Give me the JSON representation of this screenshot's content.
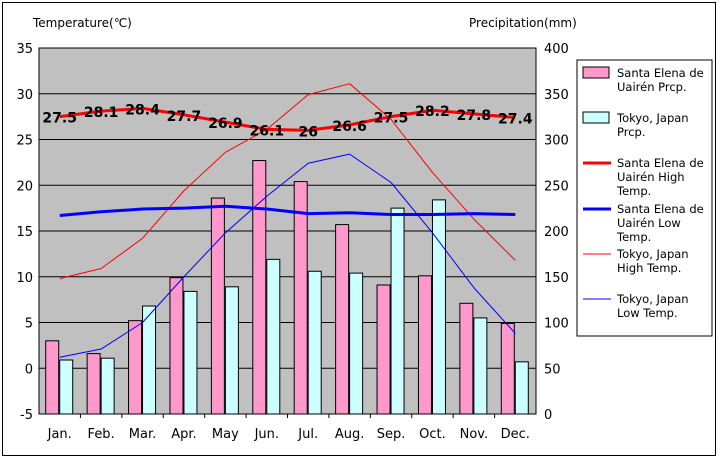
{
  "chart_data": {
    "type": "bar",
    "left_axis_label": "Temperature(℃)",
    "right_axis_label": "Precipitation(mm)",
    "categories": [
      "Jan.",
      "Feb.",
      "Mar.",
      "Apr.",
      "May",
      "Jun.",
      "Jul.",
      "Aug.",
      "Sep.",
      "Oct.",
      "Nov.",
      "Dec."
    ],
    "temp_ylim": [
      -5,
      35
    ],
    "temp_ticks": [
      -5,
      0,
      5,
      10,
      15,
      20,
      25,
      30,
      35
    ],
    "precip_ylim": [
      0,
      400
    ],
    "precip_ticks": [
      0,
      50,
      100,
      150,
      200,
      250,
      300,
      350,
      400
    ],
    "grid": "horizontal",
    "legend_position": "right",
    "plot_background": "#c0c0c0",
    "precip_series": [
      {
        "name": "Santa Elena de Uairén Prcp.",
        "color": "#ff99cc",
        "values": [
          80,
          66,
          102,
          149,
          236,
          277,
          254,
          207,
          141,
          151,
          121,
          99
        ]
      },
      {
        "name": "Tokyo, Japan Prcp.",
        "color": "#ccffff",
        "values": [
          59,
          61,
          118,
          134,
          139,
          169,
          156,
          154,
          225,
          234,
          105,
          57
        ]
      }
    ],
    "temp_series": [
      {
        "name": "Santa Elena de Uairén High Temp.",
        "color": "#ff0000",
        "width": 3,
        "values": [
          27.5,
          28.1,
          28.4,
          27.7,
          26.9,
          26.1,
          26.0,
          26.6,
          27.5,
          28.2,
          27.8,
          27.4
        ],
        "labels": [
          "27.5",
          "28.1",
          "28.4",
          "27.7",
          "26.9",
          "26.1",
          "26",
          "26.6",
          "27.5",
          "28.2",
          "27.8",
          "27.4"
        ]
      },
      {
        "name": "Santa Elena de Uairén Low Temp.",
        "color": "#0000ff",
        "width": 3,
        "values": [
          16.7,
          17.1,
          17.4,
          17.5,
          17.7,
          17.4,
          16.9,
          17.0,
          16.8,
          16.8,
          16.9,
          16.8
        ]
      },
      {
        "name": "Tokyo, Japan High Temp.",
        "color": "#ff0000",
        "width": 1,
        "values": [
          9.8,
          10.9,
          14.2,
          19.4,
          23.6,
          26.1,
          29.9,
          31.1,
          27.2,
          21.4,
          16.3,
          11.8
        ]
      },
      {
        "name": "Tokyo, Japan Low Temp.",
        "color": "#0000ff",
        "width": 1,
        "values": [
          1.2,
          2.1,
          5.0,
          10.0,
          14.8,
          18.8,
          22.4,
          23.4,
          20.3,
          14.8,
          8.8,
          3.8
        ]
      }
    ]
  },
  "legend": {
    "items": [
      {
        "lines": [
          "Santa Elena de",
          "Uairén Prcp."
        ]
      },
      {
        "lines": [
          "Tokyo, Japan",
          "Prcp."
        ]
      },
      {
        "lines": [
          "Santa Elena de",
          "Uairén High",
          "Temp."
        ]
      },
      {
        "lines": [
          "Santa Elena de",
          "Uairén Low",
          "Temp."
        ]
      },
      {
        "lines": [
          "Tokyo, Japan",
          "High Temp."
        ]
      },
      {
        "lines": [
          "Tokyo, Japan",
          "Low Temp."
        ]
      }
    ]
  }
}
